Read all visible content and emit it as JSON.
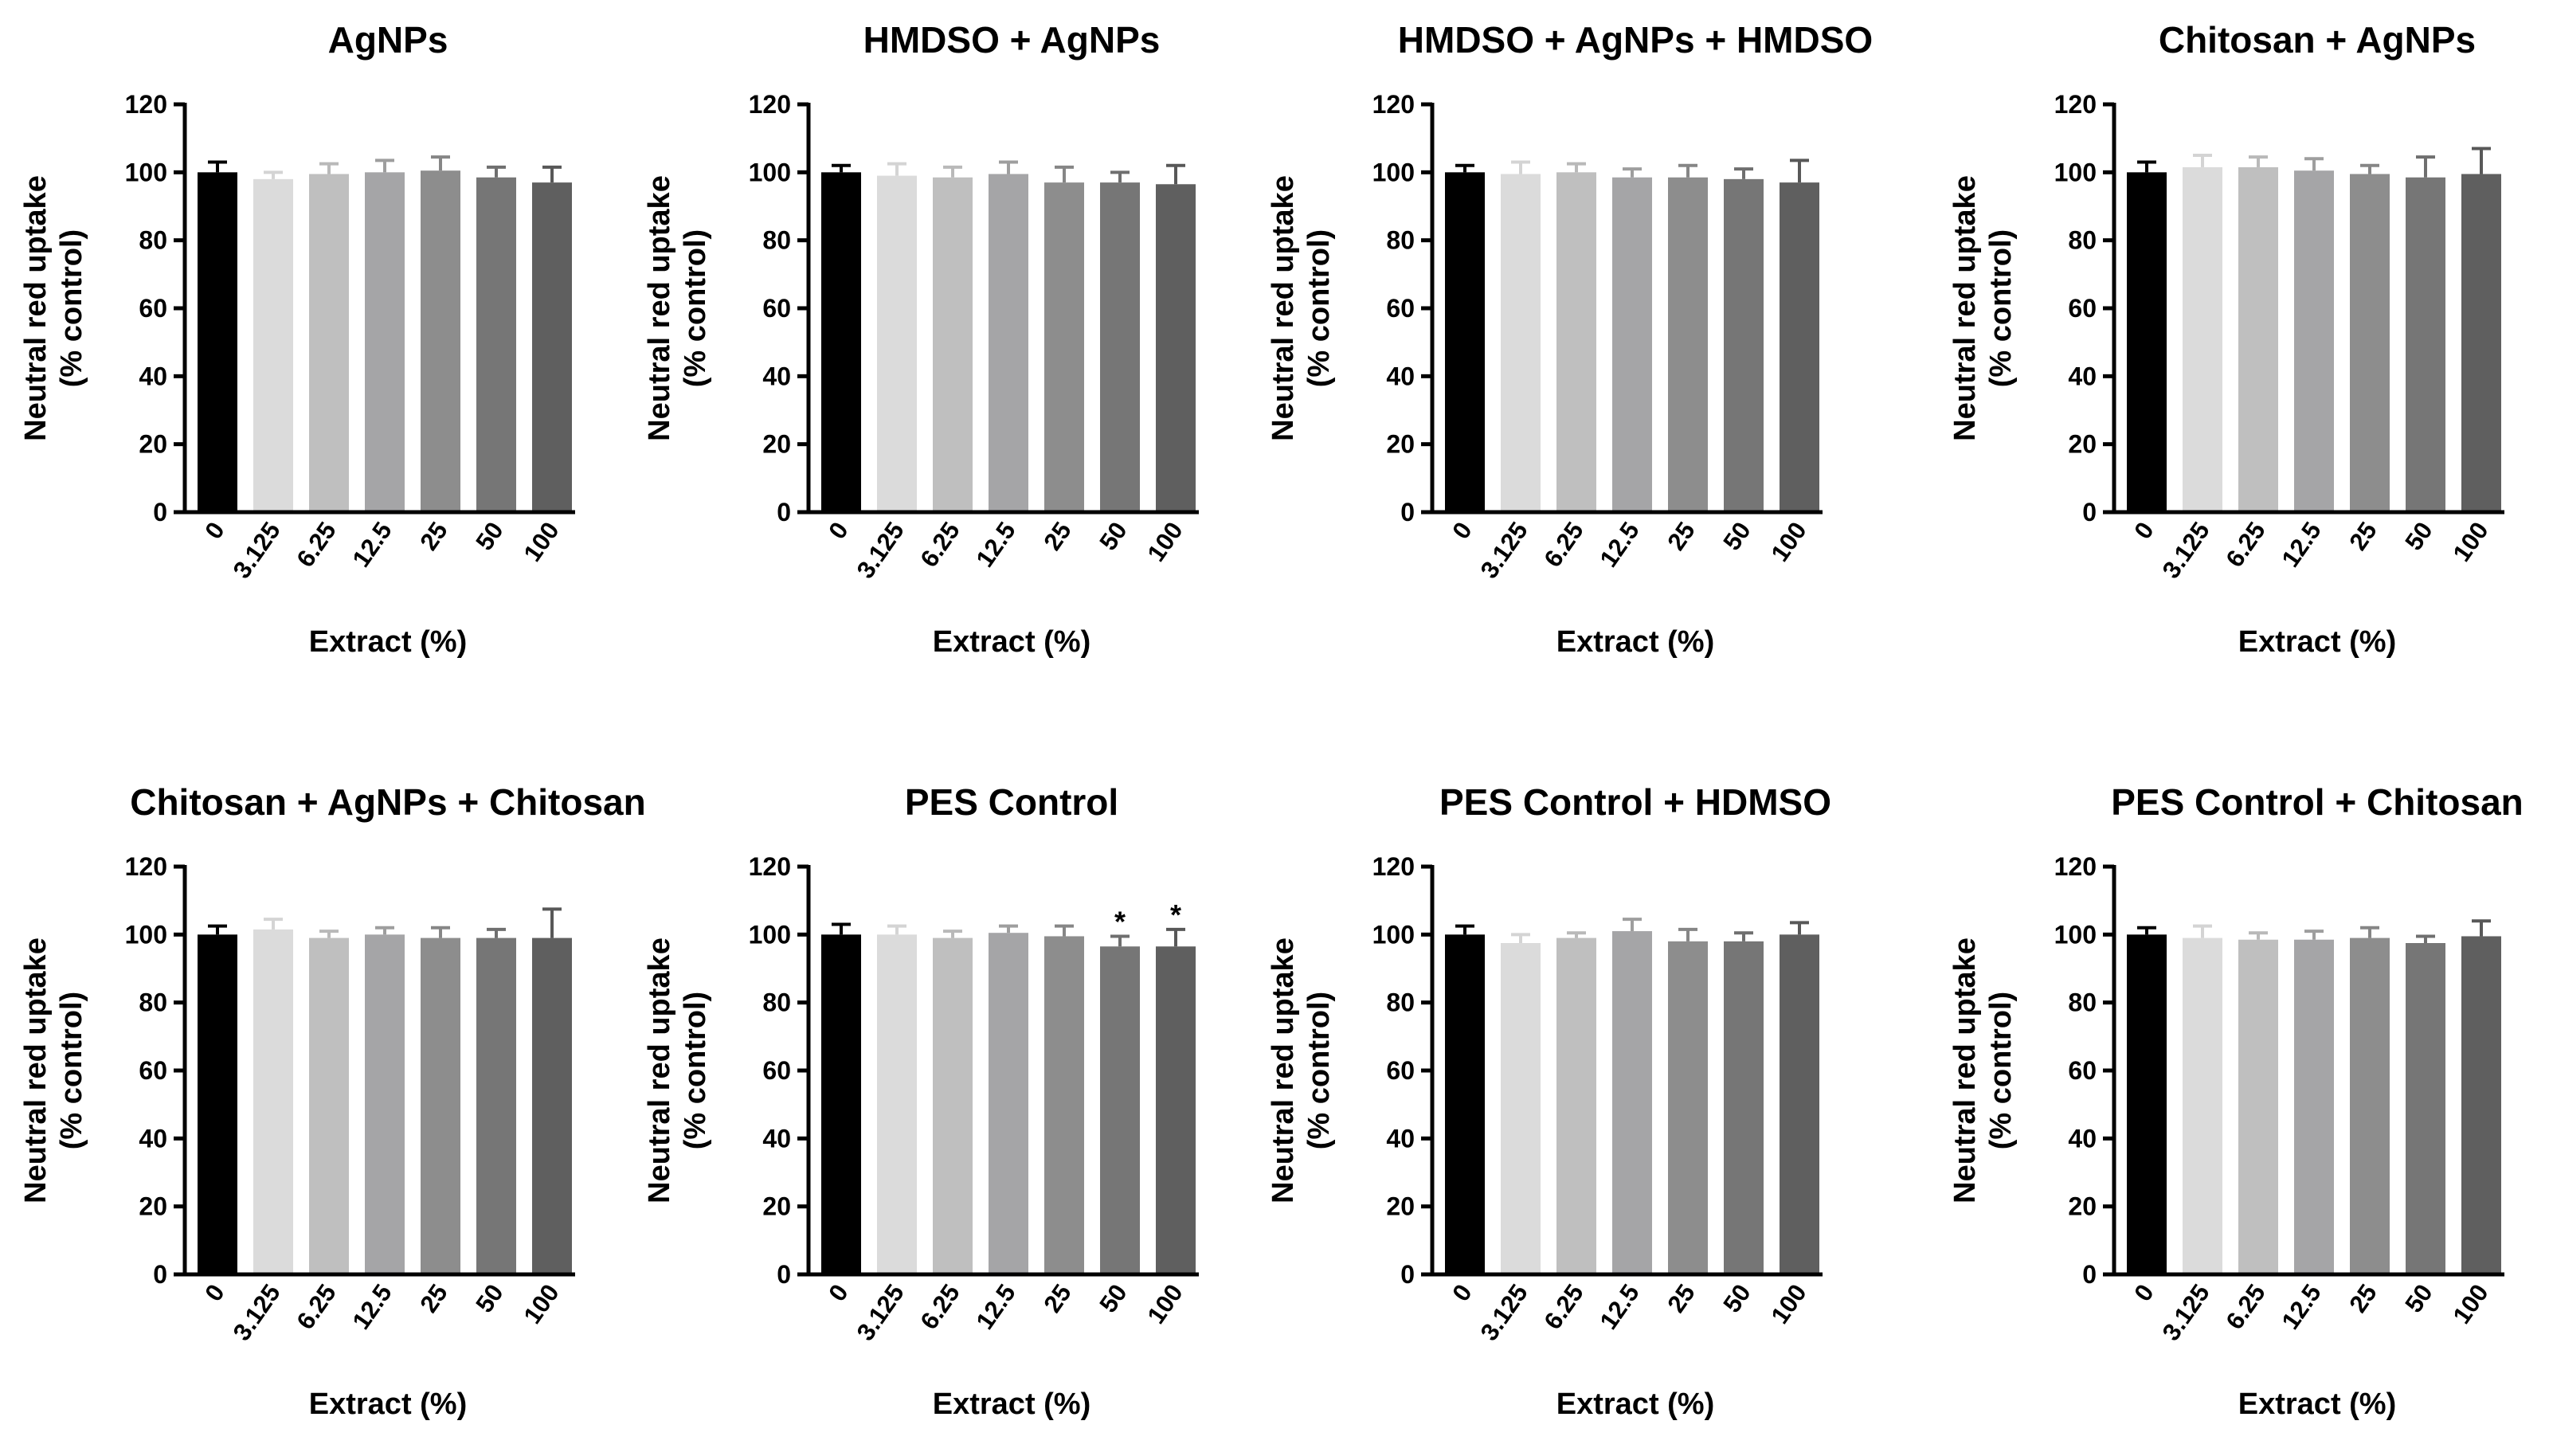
{
  "chart_data": [
    {
      "type": "bar",
      "title": "AgNPs",
      "xlabel": "Extract (%)",
      "ylabel": [
        "Neutral red uptake",
        "(% control)"
      ],
      "ylim": [
        0,
        120
      ],
      "yticks": [
        "0",
        "20",
        "40",
        "60",
        "80",
        "100",
        "120"
      ],
      "categories": [
        "0",
        "3.125",
        "6.25",
        "12.5",
        "25",
        "50",
        "100"
      ],
      "values": [
        100,
        98,
        99.5,
        100,
        100.5,
        98.5,
        97
      ],
      "errors": [
        3,
        2,
        3,
        3.5,
        4,
        3,
        4.5
      ],
      "annotations": [
        "",
        "",
        "",
        "",
        "",
        "",
        ""
      ]
    },
    {
      "type": "bar",
      "title": "HMDSO + AgNPs",
      "xlabel": "Extract (%)",
      "ylabel": [
        "Neutral red uptake",
        "(% control)"
      ],
      "ylim": [
        0,
        120
      ],
      "yticks": [
        "0",
        "20",
        "40",
        "60",
        "80",
        "100",
        "120"
      ],
      "categories": [
        "0",
        "3.125",
        "6.25",
        "12.5",
        "25",
        "50",
        "100"
      ],
      "values": [
        100,
        99,
        98.5,
        99.5,
        97,
        97,
        96.5
      ],
      "errors": [
        2,
        3.5,
        3,
        3.5,
        4.5,
        3,
        5.5
      ],
      "annotations": [
        "",
        "",
        "",
        "",
        "",
        "",
        ""
      ]
    },
    {
      "type": "bar",
      "title": "HMDSO + AgNPs + HMDSO",
      "xlabel": "Extract (%)",
      "ylabel": [
        "Neutral red uptake",
        "(% control)"
      ],
      "ylim": [
        0,
        120
      ],
      "yticks": [
        "0",
        "20",
        "40",
        "60",
        "80",
        "100",
        "120"
      ],
      "categories": [
        "0",
        "3.125",
        "6.25",
        "12.5",
        "25",
        "50",
        "100"
      ],
      "values": [
        100,
        99.5,
        100,
        98.5,
        98.5,
        98,
        97
      ],
      "errors": [
        2,
        3.5,
        2.5,
        2.5,
        3.5,
        3,
        6.5
      ],
      "annotations": [
        "",
        "",
        "",
        "",
        "",
        "",
        ""
      ]
    },
    {
      "type": "bar",
      "title": "Chitosan + AgNPs",
      "xlabel": "Extract (%)",
      "ylabel": [
        "Neutral red uptake",
        "(% control)"
      ],
      "ylim": [
        0,
        120
      ],
      "yticks": [
        "0",
        "20",
        "40",
        "60",
        "80",
        "100",
        "120"
      ],
      "categories": [
        "0",
        "3.125",
        "6.25",
        "12.5",
        "25",
        "50",
        "100"
      ],
      "values": [
        100,
        101.5,
        101.5,
        100.5,
        99.5,
        98.5,
        99.5
      ],
      "errors": [
        3,
        3.5,
        3,
        3.5,
        2.5,
        6,
        7.5
      ],
      "annotations": [
        "",
        "",
        "",
        "",
        "",
        "",
        ""
      ]
    },
    {
      "type": "bar",
      "title": "Chitosan + AgNPs + Chitosan",
      "xlabel": "Extract (%)",
      "ylabel": [
        "Neutral red uptake",
        "(% control)"
      ],
      "ylim": [
        0,
        120
      ],
      "yticks": [
        "0",
        "20",
        "40",
        "60",
        "80",
        "100",
        "120"
      ],
      "categories": [
        "0",
        "3.125",
        "6.25",
        "12.5",
        "25",
        "50",
        "100"
      ],
      "values": [
        100,
        101.5,
        99,
        100,
        99,
        99,
        99
      ],
      "errors": [
        2.5,
        3,
        2,
        2,
        3,
        2.5,
        8.5
      ],
      "annotations": [
        "",
        "",
        "",
        "",
        "",
        "",
        ""
      ]
    },
    {
      "type": "bar",
      "title": "PES Control",
      "xlabel": "Extract (%)",
      "ylabel": [
        "Neutral red uptake",
        "(% control)"
      ],
      "ylim": [
        0,
        120
      ],
      "yticks": [
        "0",
        "20",
        "40",
        "60",
        "80",
        "100",
        "120"
      ],
      "categories": [
        "0",
        "3.125",
        "6.25",
        "12.5",
        "25",
        "50",
        "100"
      ],
      "values": [
        100,
        100,
        99,
        100.5,
        99.5,
        96.5,
        96.5
      ],
      "errors": [
        3,
        2.5,
        2,
        2,
        3,
        3,
        5
      ],
      "annotations": [
        "",
        "",
        "",
        "",
        "",
        "*",
        "*"
      ]
    },
    {
      "type": "bar",
      "title": "PES Control + HDMSO",
      "xlabel": "Extract (%)",
      "ylabel": [
        "Neutral red uptake",
        "(% control)"
      ],
      "ylim": [
        0,
        120
      ],
      "yticks": [
        "0",
        "20",
        "40",
        "60",
        "80",
        "100",
        "120"
      ],
      "categories": [
        "0",
        "3.125",
        "6.25",
        "12.5",
        "25",
        "50",
        "100"
      ],
      "values": [
        100,
        97.5,
        99,
        101,
        98,
        98,
        100
      ],
      "errors": [
        2.5,
        2.5,
        1.5,
        3.5,
        3.5,
        2.5,
        3.5
      ],
      "annotations": [
        "",
        "",
        "",
        "",
        "",
        "",
        ""
      ]
    },
    {
      "type": "bar",
      "title": "PES Control + Chitosan",
      "xlabel": "Extract (%)",
      "ylabel": [
        "Neutral red uptake",
        "(% control)"
      ],
      "ylim": [
        0,
        120
      ],
      "yticks": [
        "0",
        "20",
        "40",
        "60",
        "80",
        "100",
        "120"
      ],
      "categories": [
        "0",
        "3.125",
        "6.25",
        "12.5",
        "25",
        "50",
        "100"
      ],
      "values": [
        100,
        99,
        98.5,
        98.5,
        99,
        97.5,
        99.5
      ],
      "errors": [
        2,
        3.5,
        2,
        2.5,
        3,
        2,
        4.5
      ],
      "annotations": [
        "",
        "",
        "",
        "",
        "",
        "",
        ""
      ]
    }
  ],
  "colors": {
    "bars": [
      "#000000",
      "#dbdbdb",
      "#bfbfbf",
      "#a5a5a7",
      "#8d8d8d",
      "#767676",
      "#5f5f5f"
    ],
    "error_bars": [
      "#000000",
      "#d4d4d4",
      "#b9b9b9",
      "#9e9e9e",
      "#868686",
      "#6f6f6f",
      "#585858"
    ]
  }
}
